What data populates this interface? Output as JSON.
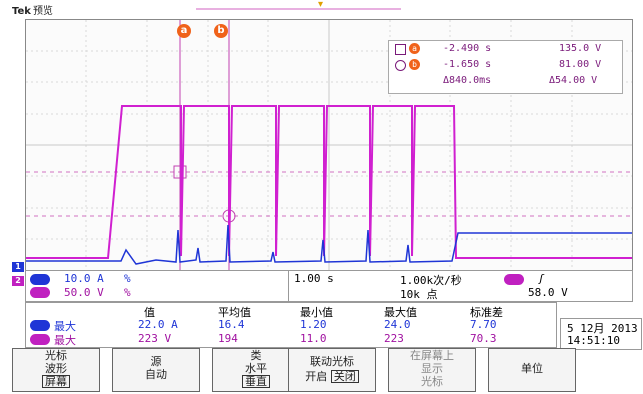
{
  "header": {
    "brand": "Tek",
    "mode": "预览",
    "trigger_marker": "▾"
  },
  "cursors": {
    "a_label": "a",
    "b_label": "b"
  },
  "readout": {
    "a_time": "-2.490 s",
    "a_value": "135.0 V",
    "b_time": "-1.650 s",
    "b_value": "81.00 V",
    "delta_time": "Δ840.0ms",
    "delta_value": "Δ54.00 V"
  },
  "channels": {
    "ch1": {
      "scale": "10.0 A",
      "unit": "%",
      "color": "#1f35d6"
    },
    "ch2": {
      "scale": "50.0 V",
      "unit": "%",
      "color": "#c020c0"
    }
  },
  "timebase": {
    "scale": "1.00 s",
    "rate": "1.00k次/秒",
    "points": "10k 点"
  },
  "trigger": {
    "level": "58.0 V",
    "edge": "ʃ"
  },
  "measurements": {
    "headers": [
      "值",
      "平均值",
      "最小值",
      "最大值",
      "标准差"
    ],
    "rows": [
      {
        "label": "最大",
        "values": [
          "22.0 A",
          "16.4",
          "1.20",
          "24.0",
          "7.70"
        ]
      },
      {
        "label": "最大",
        "values": [
          "223 V",
          "194",
          "11.0",
          "223",
          "70.3"
        ]
      }
    ]
  },
  "datetime": {
    "date": "5 12月 2013",
    "time": "14:51:10"
  },
  "menu": {
    "b1": {
      "line1": "光标",
      "line2": "波形",
      "line3": "屏幕"
    },
    "b2": {
      "line1": "源",
      "line2": "自动"
    },
    "b3": {
      "line1": "类",
      "line2": "水平",
      "line3": "垂直"
    },
    "b4": {
      "line1": "联动光标",
      "on": "开启",
      "off": "关闭"
    },
    "b5": {
      "line1": "在屏幕上",
      "line2": "显示",
      "line3": "光标"
    },
    "b6": {
      "line1": "单位"
    }
  }
}
